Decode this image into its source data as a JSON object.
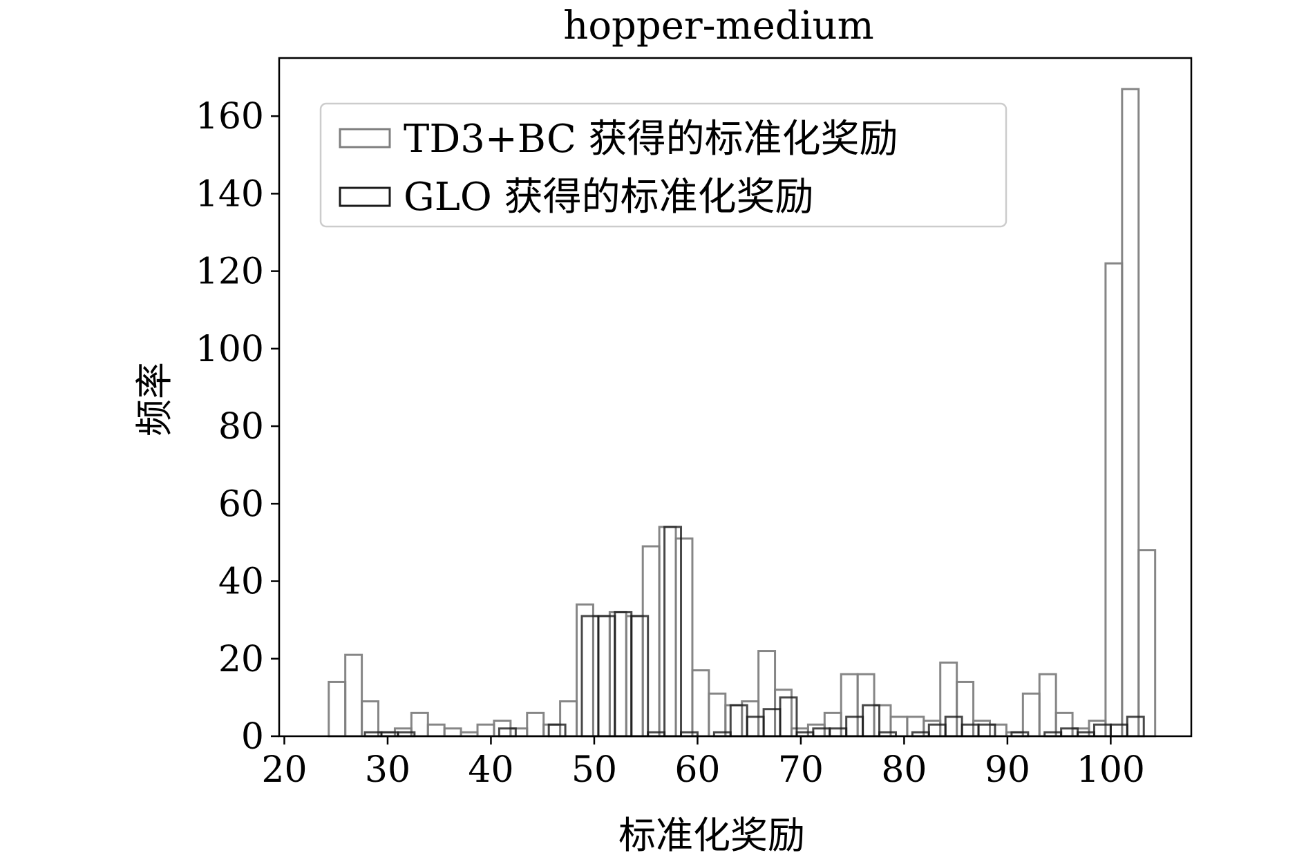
{
  "chart_data": {
    "type": "bar",
    "title": "hopper-medium",
    "xlabel": "标准化奖励",
    "ylabel": "频率",
    "xlim": [
      19.5,
      107.8
    ],
    "ylim": [
      0,
      175
    ],
    "bin_width": 1.6,
    "xticks": [
      20,
      30,
      40,
      50,
      60,
      70,
      80,
      90,
      100
    ],
    "yticks": [
      0,
      20,
      40,
      60,
      80,
      100,
      120,
      140,
      160
    ],
    "grid": false,
    "legend_position": "top-left",
    "series": [
      {
        "name": "TD3+BC 获得的标准化奖励",
        "color": "#7f7f7f",
        "bins": [
          {
            "x": 24.3,
            "v": 14
          },
          {
            "x": 25.9,
            "v": 21
          },
          {
            "x": 27.5,
            "v": 9
          },
          {
            "x": 29.1,
            "v": 1
          },
          {
            "x": 30.7,
            "v": 2
          },
          {
            "x": 32.3,
            "v": 6
          },
          {
            "x": 33.9,
            "v": 3
          },
          {
            "x": 35.5,
            "v": 2
          },
          {
            "x": 37.1,
            "v": 1
          },
          {
            "x": 38.7,
            "v": 3
          },
          {
            "x": 40.3,
            "v": 4
          },
          {
            "x": 41.9,
            "v": 2
          },
          {
            "x": 43.5,
            "v": 6
          },
          {
            "x": 45.1,
            "v": 3
          },
          {
            "x": 46.7,
            "v": 9
          },
          {
            "x": 48.3,
            "v": 34
          },
          {
            "x": 49.9,
            "v": 31
          },
          {
            "x": 51.5,
            "v": 32
          },
          {
            "x": 53.1,
            "v": 31
          },
          {
            "x": 54.7,
            "v": 49
          },
          {
            "x": 56.3,
            "v": 54
          },
          {
            "x": 57.9,
            "v": 51
          },
          {
            "x": 59.5,
            "v": 17
          },
          {
            "x": 61.1,
            "v": 11
          },
          {
            "x": 62.7,
            "v": 8
          },
          {
            "x": 64.3,
            "v": 9
          },
          {
            "x": 65.9,
            "v": 22
          },
          {
            "x": 67.5,
            "v": 12
          },
          {
            "x": 69.1,
            "v": 2
          },
          {
            "x": 70.7,
            "v": 3
          },
          {
            "x": 72.3,
            "v": 6
          },
          {
            "x": 73.9,
            "v": 16
          },
          {
            "x": 75.5,
            "v": 16
          },
          {
            "x": 77.1,
            "v": 8
          },
          {
            "x": 78.7,
            "v": 5
          },
          {
            "x": 80.3,
            "v": 5
          },
          {
            "x": 81.9,
            "v": 4
          },
          {
            "x": 83.5,
            "v": 19
          },
          {
            "x": 85.1,
            "v": 14
          },
          {
            "x": 86.7,
            "v": 4
          },
          {
            "x": 88.3,
            "v": 3
          },
          {
            "x": 89.9,
            "v": 1
          },
          {
            "x": 91.5,
            "v": 11
          },
          {
            "x": 93.1,
            "v": 16
          },
          {
            "x": 94.7,
            "v": 6
          },
          {
            "x": 96.3,
            "v": 2
          },
          {
            "x": 97.9,
            "v": 4
          },
          {
            "x": 99.5,
            "v": 122
          },
          {
            "x": 101.1,
            "v": 167
          },
          {
            "x": 102.7,
            "v": 48
          }
        ]
      },
      {
        "name": "GLO 获得的标准化奖励",
        "color": "#1a1a1a",
        "bins": [
          {
            "x": 27.8,
            "v": 1
          },
          {
            "x": 29.4,
            "v": 1
          },
          {
            "x": 31.0,
            "v": 1
          },
          {
            "x": 40.8,
            "v": 2
          },
          {
            "x": 45.6,
            "v": 3
          },
          {
            "x": 48.8,
            "v": 31
          },
          {
            "x": 50.4,
            "v": 31
          },
          {
            "x": 52.0,
            "v": 32
          },
          {
            "x": 53.6,
            "v": 31
          },
          {
            "x": 55.2,
            "v": 1
          },
          {
            "x": 56.8,
            "v": 54
          },
          {
            "x": 58.4,
            "v": 1
          },
          {
            "x": 61.6,
            "v": 1
          },
          {
            "x": 63.2,
            "v": 8
          },
          {
            "x": 64.8,
            "v": 5
          },
          {
            "x": 66.4,
            "v": 7
          },
          {
            "x": 68.0,
            "v": 10
          },
          {
            "x": 69.6,
            "v": 1
          },
          {
            "x": 71.2,
            "v": 2
          },
          {
            "x": 72.8,
            "v": 2
          },
          {
            "x": 74.4,
            "v": 5
          },
          {
            "x": 76.0,
            "v": 8
          },
          {
            "x": 77.6,
            "v": 1
          },
          {
            "x": 80.8,
            "v": 1
          },
          {
            "x": 82.4,
            "v": 3
          },
          {
            "x": 84.0,
            "v": 5
          },
          {
            "x": 85.6,
            "v": 3
          },
          {
            "x": 87.2,
            "v": 3
          },
          {
            "x": 90.4,
            "v": 1
          },
          {
            "x": 93.6,
            "v": 1
          },
          {
            "x": 95.2,
            "v": 2
          },
          {
            "x": 96.8,
            "v": 1
          },
          {
            "x": 98.4,
            "v": 3
          },
          {
            "x": 100.0,
            "v": 3
          },
          {
            "x": 101.6,
            "v": 5
          }
        ]
      }
    ]
  }
}
